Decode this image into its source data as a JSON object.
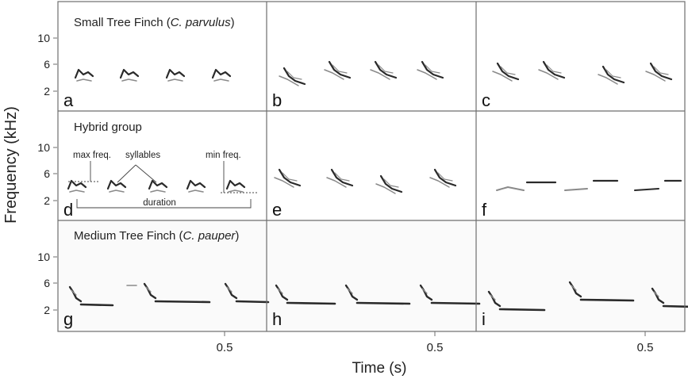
{
  "figure": {
    "y_axis_label": "Frequency (kHz)",
    "x_axis_label": "Time (s)",
    "y_ticks": [
      "10",
      "6",
      "2"
    ],
    "x_tick": "0.5",
    "rows": [
      {
        "title": "Small Tree Finch (",
        "title_italic": "C. parvulus",
        "title_end": ")"
      },
      {
        "title": "Hybrid group",
        "title_italic": "",
        "title_end": ""
      },
      {
        "title": "Medium Tree Finch (",
        "title_italic": "C. pauper",
        "title_end": ")"
      }
    ],
    "panel_letters": [
      "a",
      "b",
      "c",
      "d",
      "e",
      "f",
      "g",
      "h",
      "i"
    ],
    "annotations": {
      "max_freq": "max freq.",
      "syllables": "syllables",
      "min_freq": "min freq.",
      "duration": "duration"
    }
  },
  "colors": {
    "frame": "#6e6e6e",
    "ink": "#1f1f1f",
    "spectro_dark": "#2a2a2a",
    "spectro_light": "#8a8a8a"
  }
}
